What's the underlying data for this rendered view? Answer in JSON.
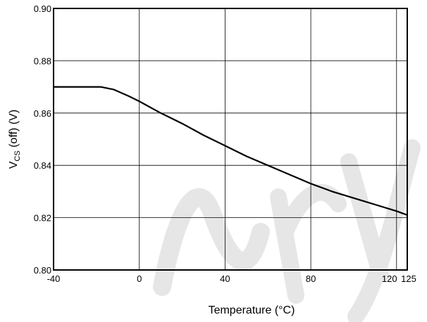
{
  "chart_data": {
    "type": "line",
    "title": "",
    "xlabel": "Temperature (°C)",
    "ylabel_main": "V",
    "ylabel_sub": "CS",
    "ylabel_rest": " (off) (V)",
    "xlim": [
      -40,
      125
    ],
    "ylim": [
      0.8,
      0.9
    ],
    "x_ticks": [
      -40,
      0,
      40,
      80,
      120,
      125
    ],
    "x_tick_labels": [
      "-40",
      "0",
      "40",
      "80",
      "120",
      "125"
    ],
    "y_ticks": [
      0.8,
      0.82,
      0.84,
      0.86,
      0.88,
      0.9
    ],
    "y_tick_labels": [
      "0.80",
      "0.82",
      "0.84",
      "0.86",
      "0.88",
      "0.90"
    ],
    "grid": true,
    "line_color": "#000000",
    "series": [
      {
        "x": [
          -40,
          -18,
          -12,
          -5,
          0,
          10,
          20,
          30,
          40,
          50,
          60,
          70,
          80,
          90,
          100,
          110,
          120,
          125
        ],
        "y": [
          0.87,
          0.87,
          0.869,
          0.8665,
          0.8645,
          0.86,
          0.856,
          0.8515,
          0.8475,
          0.8435,
          0.84,
          0.8365,
          0.833,
          0.83,
          0.8275,
          0.825,
          0.8225,
          0.821
        ]
      }
    ]
  },
  "watermark": "ary"
}
